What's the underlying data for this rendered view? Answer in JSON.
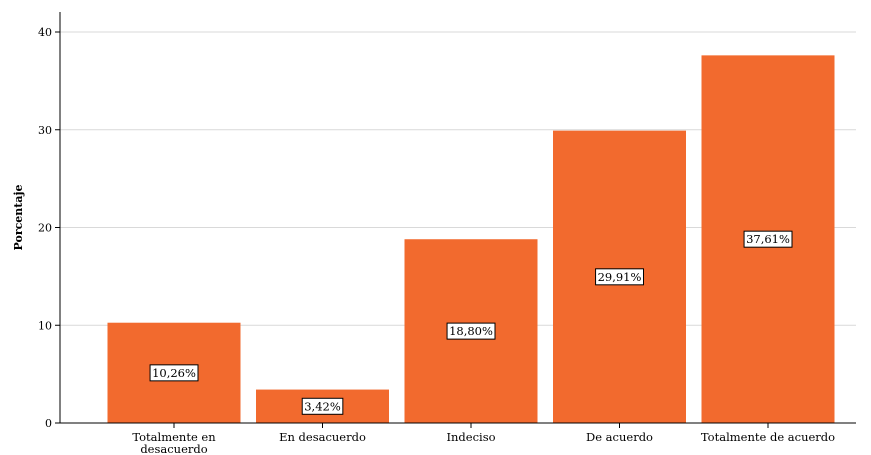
{
  "chart_data": {
    "type": "bar",
    "title": "",
    "xlabel": "",
    "ylabel": "Porcentaje",
    "ylim": [
      0,
      40
    ],
    "yticks": [
      0,
      10,
      20,
      30,
      40
    ],
    "grid": true,
    "categories": [
      [
        "Totalmente en",
        "desacuerdo"
      ],
      [
        "En desacuerdo"
      ],
      [
        "Indeciso"
      ],
      [
        "De acuerdo"
      ],
      [
        "Totalmente de acuerdo"
      ]
    ],
    "values": [
      10.26,
      3.42,
      18.8,
      29.91,
      37.61
    ],
    "data_labels": [
      "10,26%",
      "3,42%",
      "18,80%",
      "29,91%",
      "37,61%"
    ],
    "colors": {
      "bar": "#f26a2e",
      "grid": "#d9d9d9",
      "axis": "#000000"
    }
  }
}
